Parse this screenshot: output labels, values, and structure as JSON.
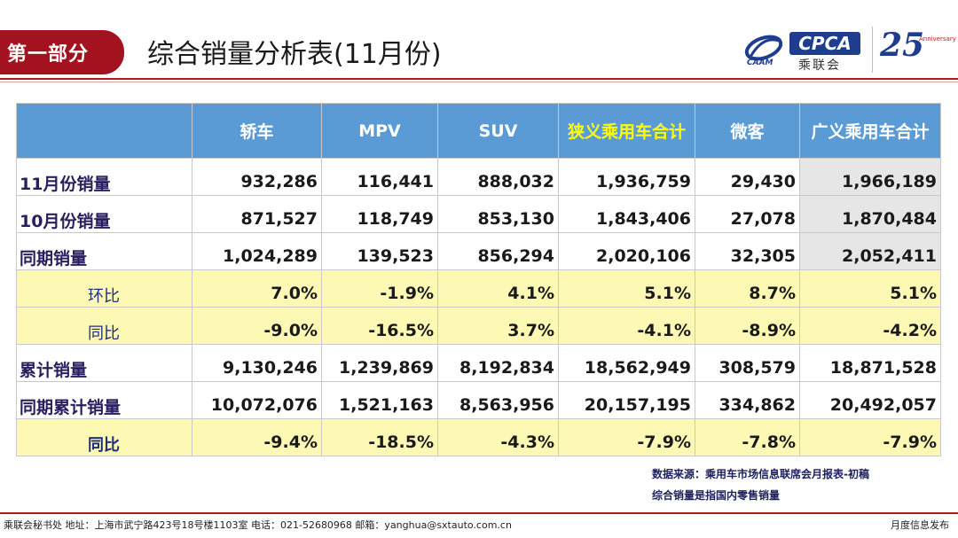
{
  "header": {
    "section": "第一部分",
    "title": "综合销量分析表(11月份)",
    "logo_caam": "CAAM",
    "logo_cpca": "CPCA",
    "logo_cpca_cn": "乘联会",
    "logo_anniv_num": "25",
    "logo_anniv_text": "Anniversary"
  },
  "table": {
    "columns": [
      "",
      "轿车",
      "MPV",
      "SUV",
      "狭义乘用车合计",
      "微客",
      "广义乘用车合计"
    ],
    "rows": [
      {
        "label": "11月份销量",
        "values": [
          "932,286",
          "116,441",
          "888,032",
          "1,936,759",
          "29,430",
          "1,966,189"
        ]
      },
      {
        "label": "10月份销量",
        "values": [
          "871,527",
          "118,749",
          "853,130",
          "1,843,406",
          "27,078",
          "1,870,484"
        ]
      },
      {
        "label": "同期销量",
        "values": [
          "1,024,289",
          "139,523",
          "856,294",
          "2,020,106",
          "32,305",
          "2,052,411"
        ]
      },
      {
        "label": "环比",
        "values": [
          "7.0%",
          "-1.9%",
          "4.1%",
          "5.1%",
          "8.7%",
          "5.1%"
        ]
      },
      {
        "label": "同比",
        "values": [
          "-9.0%",
          "-16.5%",
          "3.7%",
          "-4.1%",
          "-8.9%",
          "-4.2%"
        ]
      },
      {
        "label": "累计销量",
        "values": [
          "9,130,246",
          "1,239,869",
          "8,192,834",
          "18,562,949",
          "308,579",
          "18,871,528"
        ]
      },
      {
        "label": "同期累计销量",
        "values": [
          "10,072,076",
          "1,521,163",
          "8,563,956",
          "20,157,195",
          "334,862",
          "20,492,057"
        ]
      },
      {
        "label": "同比",
        "values": [
          "-9.4%",
          "-18.5%",
          "-4.3%",
          "-7.9%",
          "-7.8%",
          "-7.9%"
        ]
      }
    ]
  },
  "notes": {
    "source": "数据来源：乘用车市场信息联席会月报表-初稿",
    "definition": "综合销量是指国内零售销量"
  },
  "footer": {
    "left": "乘联会秘书处  地址：上海市武宁路423号18号楼1103室  电话：021-52680968  邮箱：yanghua@sxtauto.com.cn",
    "right": "月度信息发布"
  },
  "colors": {
    "brand_red": "#a3121f",
    "header_blue": "#5b9bd5",
    "highlight_yellow": "#fdf9b4",
    "logo_blue": "#1e3d8f"
  }
}
